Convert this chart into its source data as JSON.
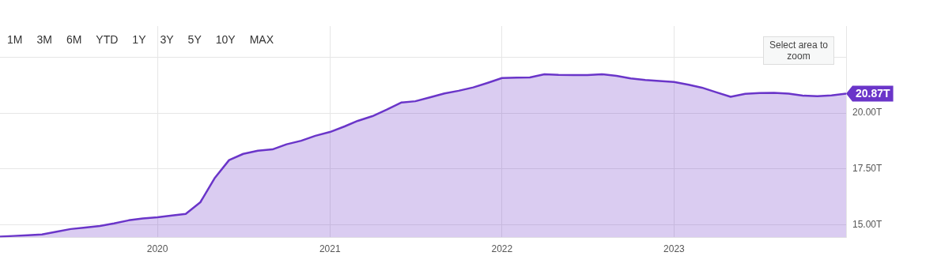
{
  "chart_data": {
    "type": "area",
    "x": [
      "2019-02",
      "2019-03",
      "2019-04",
      "2019-05",
      "2019-06",
      "2019-07",
      "2019-08",
      "2019-09",
      "2019-10",
      "2019-11",
      "2019-12",
      "2020-01",
      "2020-02",
      "2020-03",
      "2020-04",
      "2020-05",
      "2020-06",
      "2020-07",
      "2020-08",
      "2020-09",
      "2020-10",
      "2020-11",
      "2020-12",
      "2021-01",
      "2021-02",
      "2021-03",
      "2021-04",
      "2021-05",
      "2021-06",
      "2021-07",
      "2021-08",
      "2021-09",
      "2021-10",
      "2021-11",
      "2021-12",
      "2022-01",
      "2022-02",
      "2022-03",
      "2022-04",
      "2022-05",
      "2022-06",
      "2022-07",
      "2022-08",
      "2022-09",
      "2022-10",
      "2022-11",
      "2022-12",
      "2023-01",
      "2023-02",
      "2023-03",
      "2023-04",
      "2023-05",
      "2023-06",
      "2023-07",
      "2023-08",
      "2023-09",
      "2023-10",
      "2023-11",
      "2023-12",
      "2024-01"
    ],
    "series": [
      {
        "color": "#6a35c9",
        "values": [
          14.46,
          14.49,
          14.52,
          14.56,
          14.68,
          14.8,
          14.87,
          14.94,
          15.05,
          15.19,
          15.27,
          15.33,
          15.41,
          15.48,
          16.0,
          17.07,
          17.89,
          18.17,
          18.31,
          18.37,
          18.6,
          18.76,
          18.98,
          19.15,
          19.4,
          19.65,
          19.86,
          20.15,
          20.47,
          20.53,
          20.7,
          20.88,
          21.0,
          21.15,
          21.35,
          21.57,
          21.59,
          21.6,
          21.74,
          21.71,
          21.7,
          21.7,
          21.74,
          21.67,
          21.55,
          21.48,
          21.44,
          21.39,
          21.27,
          21.14,
          20.93,
          20.73,
          20.86,
          20.9,
          20.91,
          20.87,
          20.78,
          20.76,
          20.79,
          20.87
        ],
        "value_labels": [
          null,
          null,
          null,
          null,
          null,
          null,
          null,
          null,
          null,
          null,
          null,
          null,
          null,
          null,
          null,
          null,
          null,
          null,
          null,
          null,
          null,
          null,
          null,
          null,
          null,
          null,
          null,
          null,
          null,
          null,
          null,
          null,
          null,
          null,
          null,
          null,
          null,
          null,
          null,
          null,
          null,
          null,
          null,
          null,
          null,
          null,
          null,
          null,
          null,
          null,
          null,
          null,
          null,
          null,
          null,
          null,
          null,
          null,
          null,
          "20.87T"
        ]
      }
    ],
    "xlim": [
      "2019-02",
      "2024-01"
    ],
    "xticks": [
      "2020",
      "2021",
      "2022",
      "2023"
    ],
    "ylim": [
      14.42,
      23.9
    ],
    "yticks": [
      {
        "value": 15,
        "label": "15.00T"
      },
      {
        "value": 17.5,
        "label": "17.50T"
      },
      {
        "value": 20,
        "label": "20.00T"
      },
      {
        "value": 22.5,
        "label": null
      }
    ],
    "grid": true,
    "legend": false,
    "marker": "none",
    "line_style": "solid",
    "annotations": [
      "1M",
      "3M",
      "6M",
      "YTD",
      "1Y",
      "3Y",
      "5Y",
      "10Y",
      "MAX",
      "Select area to zoom"
    ]
  }
}
